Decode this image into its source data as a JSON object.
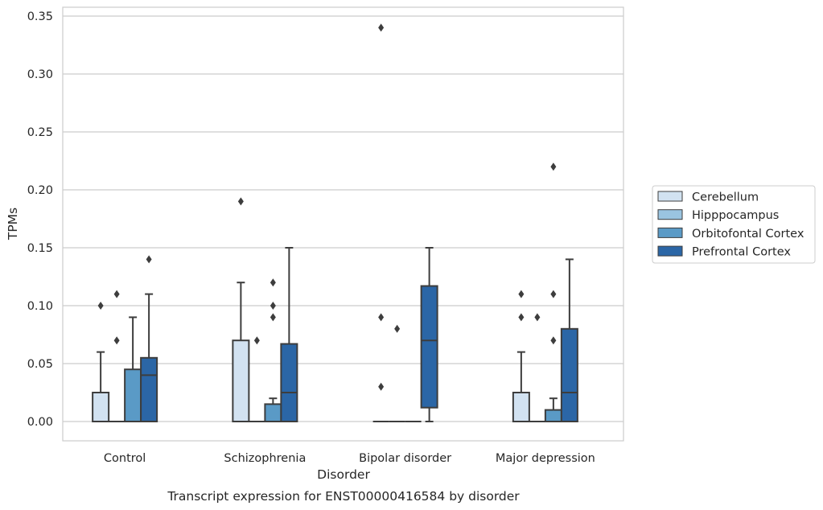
{
  "chart_data": {
    "type": "box",
    "title": "",
    "caption": "Transcript expression for ENST00000416584 by disorder",
    "xlabel": "Disorder",
    "ylabel": "TPMs",
    "ylim": [
      -0.017,
      0.358
    ],
    "yticks": [
      "0.00",
      "0.05",
      "0.10",
      "0.15",
      "0.20",
      "0.25",
      "0.30",
      "0.35"
    ],
    "ytick_values": [
      0,
      0.05,
      0.1,
      0.15,
      0.2,
      0.25,
      0.3,
      0.35
    ],
    "grid": "horizontal",
    "legend_position": "right",
    "categories": [
      "Control",
      "Schizophrenia",
      "Bipolar disorder",
      "Major depression"
    ],
    "series": [
      {
        "name": "Cerebellum",
        "color": "#d2e2f1",
        "boxes": [
          {
            "q1": 0,
            "median": 0,
            "q3": 0.025,
            "whisker_low": 0,
            "whisker_high": 0.06,
            "outliers": [
              0.1
            ]
          },
          {
            "q1": 0,
            "median": 0,
            "q3": 0.07,
            "whisker_low": 0,
            "whisker_high": 0.12,
            "outliers": [
              0.19
            ]
          },
          {
            "q1": 0,
            "median": 0,
            "q3": 0,
            "whisker_low": 0,
            "whisker_high": 0,
            "outliers": [
              0.03,
              0.09,
              0.34
            ]
          },
          {
            "q1": 0,
            "median": 0,
            "q3": 0.025,
            "whisker_low": 0,
            "whisker_high": 0.06,
            "outliers": [
              0.09,
              0.11
            ]
          }
        ]
      },
      {
        "name": "Hipppocampus",
        "color": "#9ac4e0",
        "boxes": [
          {
            "q1": 0,
            "median": 0,
            "q3": 0,
            "whisker_low": 0,
            "whisker_high": 0,
            "outliers": [
              0.07,
              0.11
            ]
          },
          {
            "q1": 0,
            "median": 0,
            "q3": 0,
            "whisker_low": 0,
            "whisker_high": 0,
            "outliers": [
              0.07
            ]
          },
          {
            "q1": 0,
            "median": 0,
            "q3": 0,
            "whisker_low": 0,
            "whisker_high": 0,
            "outliers": [
              0.08
            ]
          },
          {
            "q1": 0,
            "median": 0,
            "q3": 0,
            "whisker_low": 0,
            "whisker_high": 0,
            "outliers": [
              0.09
            ]
          }
        ]
      },
      {
        "name": "Orbitofontal Cortex",
        "color": "#5a9ac6",
        "boxes": [
          {
            "q1": 0,
            "median": 0,
            "q3": 0.045,
            "whisker_low": 0,
            "whisker_high": 0.09,
            "outliers": []
          },
          {
            "q1": 0,
            "median": 0,
            "q3": 0.015,
            "whisker_low": 0,
            "whisker_high": 0.02,
            "outliers": [
              0.09,
              0.1,
              0.12
            ]
          },
          {
            "q1": 0,
            "median": 0,
            "q3": 0,
            "whisker_low": 0,
            "whisker_high": 0,
            "outliers": []
          },
          {
            "q1": 0,
            "median": 0,
            "q3": 0.01,
            "whisker_low": 0,
            "whisker_high": 0.02,
            "outliers": [
              0.07,
              0.11,
              0.22
            ]
          }
        ]
      },
      {
        "name": "Prefrontal Cortex",
        "color": "#2b66a6",
        "boxes": [
          {
            "q1": 0,
            "median": 0.04,
            "q3": 0.055,
            "whisker_low": 0,
            "whisker_high": 0.11,
            "outliers": [
              0.14
            ]
          },
          {
            "q1": 0,
            "median": 0.025,
            "q3": 0.067,
            "whisker_low": 0,
            "whisker_high": 0.15,
            "outliers": []
          },
          {
            "q1": 0.012,
            "median": 0.07,
            "q3": 0.117,
            "whisker_low": 0,
            "whisker_high": 0.15,
            "outliers": []
          },
          {
            "q1": 0,
            "median": 0.025,
            "q3": 0.08,
            "whisker_low": 0,
            "whisker_high": 0.14,
            "outliers": []
          }
        ]
      }
    ]
  }
}
